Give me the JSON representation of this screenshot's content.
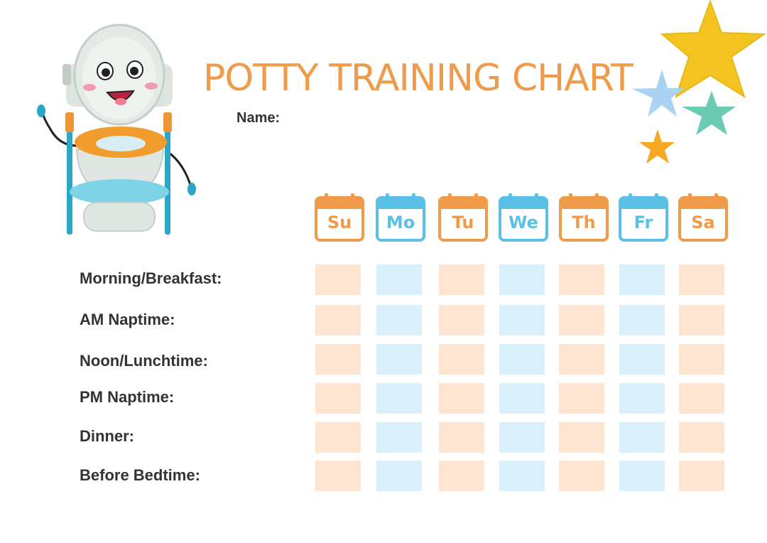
{
  "title": "POTTY TRAINING CHART",
  "name_label": "Name:",
  "days": [
    {
      "label": "Su",
      "color": "#ef9b4a"
    },
    {
      "label": "Mo",
      "color": "#5bc0e6"
    },
    {
      "label": "Tu",
      "color": "#ef9b4a"
    },
    {
      "label": "We",
      "color": "#5bc0e6"
    },
    {
      "label": "Th",
      "color": "#ef9b4a"
    },
    {
      "label": "Fr",
      "color": "#5bc0e6"
    },
    {
      "label": "Sa",
      "color": "#ef9b4a"
    }
  ],
  "rows": [
    {
      "label": "Morning/Breakfast:"
    },
    {
      "label": "AM Naptime:"
    },
    {
      "label": "Noon/Lunchtime:"
    },
    {
      "label": "PM Naptime:"
    },
    {
      "label": "Dinner:"
    },
    {
      "label": "Before Bedtime:"
    }
  ],
  "colors": {
    "orange": "#ef9b4a",
    "blue": "#5bc0e6",
    "cell_orange": "#fde5d1",
    "cell_blue": "#d9eff9",
    "text": "#333333"
  },
  "decorations": {
    "mascot": "smiling-potty-chair-mascot",
    "stars": [
      "yellow-star",
      "light-blue-star",
      "teal-star",
      "orange-star"
    ]
  }
}
